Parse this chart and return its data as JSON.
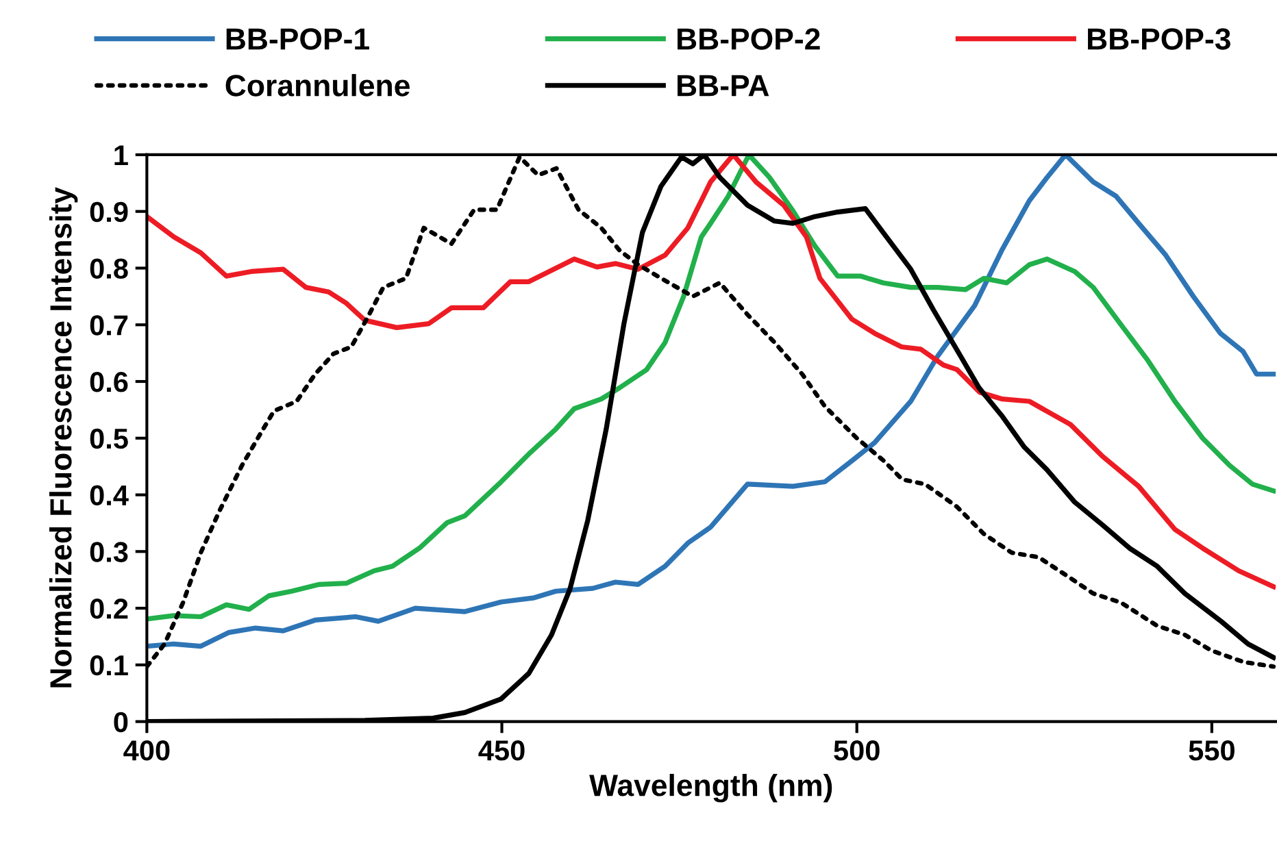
{
  "chart_data": {
    "type": "line",
    "xlabel": "Wavelength (nm)",
    "ylabel": "Normalized Fluorescence Intensity",
    "xlim": [
      400,
      559
    ],
    "xticks": [
      400,
      450,
      500,
      550
    ],
    "ylim": [
      0,
      1
    ],
    "yticks": [
      0,
      0.1,
      0.2,
      0.3,
      0.4,
      0.5,
      0.6,
      0.7,
      0.8,
      0.9,
      1
    ],
    "grid": false,
    "legend": "top",
    "marker": "none",
    "series": [
      {
        "name": "BB-POP-1",
        "color": "#2e75b6",
        "line_style": "solid",
        "x": [
          400,
          403.8,
          407.6,
          411.5,
          415.3,
          419.2,
          423.7,
          429.4,
          432.6,
          437.8,
          444.8,
          449.9,
          454.4,
          457.6,
          462.8,
          466.0,
          469.2,
          473.0,
          476.2,
          479.4,
          484.6,
          491.0,
          495.5,
          499.3,
          502.5,
          507.6,
          511.4,
          516.6,
          520.4,
          524.3,
          526.8,
          529.4,
          533.3,
          536.5,
          539.7,
          543.5,
          547.4,
          551.2,
          554.4,
          556.3,
          558.7
        ],
        "values": [
          0.133,
          0.137,
          0.133,
          0.157,
          0.165,
          0.16,
          0.179,
          0.185,
          0.177,
          0.2,
          0.194,
          0.211,
          0.218,
          0.23,
          0.235,
          0.246,
          0.242,
          0.274,
          0.315,
          0.343,
          0.419,
          0.415,
          0.423,
          0.46,
          0.492,
          0.565,
          0.645,
          0.734,
          0.831,
          0.919,
          0.96,
          1.0,
          0.952,
          0.927,
          0.879,
          0.823,
          0.75,
          0.685,
          0.653,
          0.613,
          0.613
        ]
      },
      {
        "name": "BB-POP-2",
        "color": "#21b04b",
        "line_style": "solid",
        "x": [
          400,
          403.8,
          407.6,
          411.2,
          414.4,
          417.2,
          420.4,
          424.3,
          428.1,
          432.0,
          434.6,
          438.4,
          442.3,
          444.8,
          449.9,
          453.8,
          457.6,
          460.2,
          464.0,
          466.6,
          470.4,
          473.0,
          475.6,
          478.1,
          479.4,
          481.9,
          484.8,
          487.7,
          490.9,
          494.1,
          497.3,
          500.5,
          503.7,
          507.6,
          511.4,
          515.3,
          517.9,
          521.1,
          524.3,
          526.8,
          530.7,
          533.3,
          537.1,
          541.0,
          544.8,
          548.7,
          552.5,
          555.7,
          558.7
        ],
        "values": [
          0.181,
          0.187,
          0.185,
          0.206,
          0.198,
          0.222,
          0.23,
          0.242,
          0.244,
          0.266,
          0.274,
          0.306,
          0.351,
          0.363,
          0.423,
          0.472,
          0.516,
          0.552,
          0.569,
          0.589,
          0.621,
          0.669,
          0.75,
          0.855,
          0.879,
          0.927,
          1.0,
          0.96,
          0.903,
          0.839,
          0.786,
          0.786,
          0.774,
          0.766,
          0.766,
          0.762,
          0.782,
          0.774,
          0.806,
          0.816,
          0.794,
          0.766,
          0.702,
          0.637,
          0.565,
          0.5,
          0.452,
          0.419,
          0.407
        ]
      },
      {
        "name": "BB-POP-3",
        "color": "#ed1c24",
        "line_style": "solid",
        "x": [
          400,
          403.8,
          407.6,
          411.2,
          414.7,
          419.2,
          422.4,
          425.6,
          428.1,
          430.7,
          435.2,
          439.7,
          442.9,
          447.4,
          451.2,
          453.8,
          460.2,
          463.4,
          466.0,
          469.2,
          473.0,
          476.2,
          479.4,
          482.6,
          485.8,
          489.7,
          492.9,
          494.8,
          499.3,
          502.5,
          506.3,
          509.0,
          512.2,
          514.1,
          517.3,
          520.5,
          524.3,
          530.1,
          534.6,
          539.7,
          544.8,
          548.7,
          553.8,
          558.7
        ],
        "values": [
          0.891,
          0.855,
          0.827,
          0.786,
          0.794,
          0.798,
          0.766,
          0.758,
          0.738,
          0.708,
          0.695,
          0.702,
          0.73,
          0.73,
          0.776,
          0.776,
          0.816,
          0.802,
          0.808,
          0.798,
          0.823,
          0.871,
          0.952,
          1.0,
          0.952,
          0.911,
          0.855,
          0.782,
          0.71,
          0.685,
          0.661,
          0.657,
          0.629,
          0.621,
          0.581,
          0.569,
          0.565,
          0.524,
          0.468,
          0.415,
          0.339,
          0.306,
          0.266,
          0.238
        ]
      },
      {
        "name": "Corannulene",
        "color": "#000000",
        "line_style": "dotted",
        "x": [
          400,
          402.5,
          405.1,
          407.6,
          410.2,
          413.4,
          416.0,
          417.9,
          421.1,
          423.7,
          426.3,
          428.8,
          431.3,
          433.3,
          436.5,
          439.0,
          442.9,
          446.1,
          449.3,
          452.5,
          455.1,
          457.7,
          460.8,
          464.0,
          466.6,
          469.2,
          473.0,
          476.9,
          480.7,
          484.6,
          488.4,
          492.3,
          495.5,
          500.0,
          503.8,
          506.4,
          509.6,
          514.1,
          517.9,
          521.8,
          525.6,
          529.5,
          533.3,
          537.2,
          542.3,
          546.2,
          550.0,
          554.5,
          558.7
        ],
        "values": [
          0.097,
          0.137,
          0.21,
          0.298,
          0.371,
          0.452,
          0.508,
          0.548,
          0.565,
          0.613,
          0.649,
          0.661,
          0.718,
          0.766,
          0.782,
          0.871,
          0.843,
          0.903,
          0.903,
          0.996,
          0.964,
          0.976,
          0.903,
          0.871,
          0.831,
          0.806,
          0.778,
          0.75,
          0.774,
          0.718,
          0.669,
          0.613,
          0.556,
          0.5,
          0.46,
          0.427,
          0.419,
          0.379,
          0.331,
          0.298,
          0.29,
          0.258,
          0.226,
          0.21,
          0.169,
          0.153,
          0.125,
          0.105,
          0.097
        ]
      },
      {
        "name": "BB-PA",
        "color": "#000000",
        "line_style": "solid",
        "x": [
          400,
          430.7,
          440.3,
          444.8,
          449.9,
          453.8,
          457.0,
          459.6,
          462.1,
          464.7,
          467.2,
          469.8,
          472.4,
          475.3,
          476.9,
          478.5,
          480.7,
          484.6,
          488.4,
          491.0,
          494.1,
          497.3,
          501.2,
          503.7,
          507.6,
          510.8,
          514.6,
          517.2,
          520.4,
          523.6,
          526.8,
          530.7,
          534.6,
          538.4,
          542.3,
          546.2,
          551.3,
          555.1,
          558.7
        ],
        "values": [
          0,
          0.002,
          0.006,
          0.016,
          0.04,
          0.085,
          0.153,
          0.234,
          0.355,
          0.516,
          0.702,
          0.863,
          0.944,
          0.996,
          0.984,
          1.0,
          0.96,
          0.911,
          0.883,
          0.879,
          0.891,
          0.899,
          0.905,
          0.863,
          0.798,
          0.726,
          0.645,
          0.589,
          0.54,
          0.484,
          0.444,
          0.387,
          0.347,
          0.306,
          0.274,
          0.226,
          0.177,
          0.137,
          0.113
        ]
      }
    ]
  }
}
